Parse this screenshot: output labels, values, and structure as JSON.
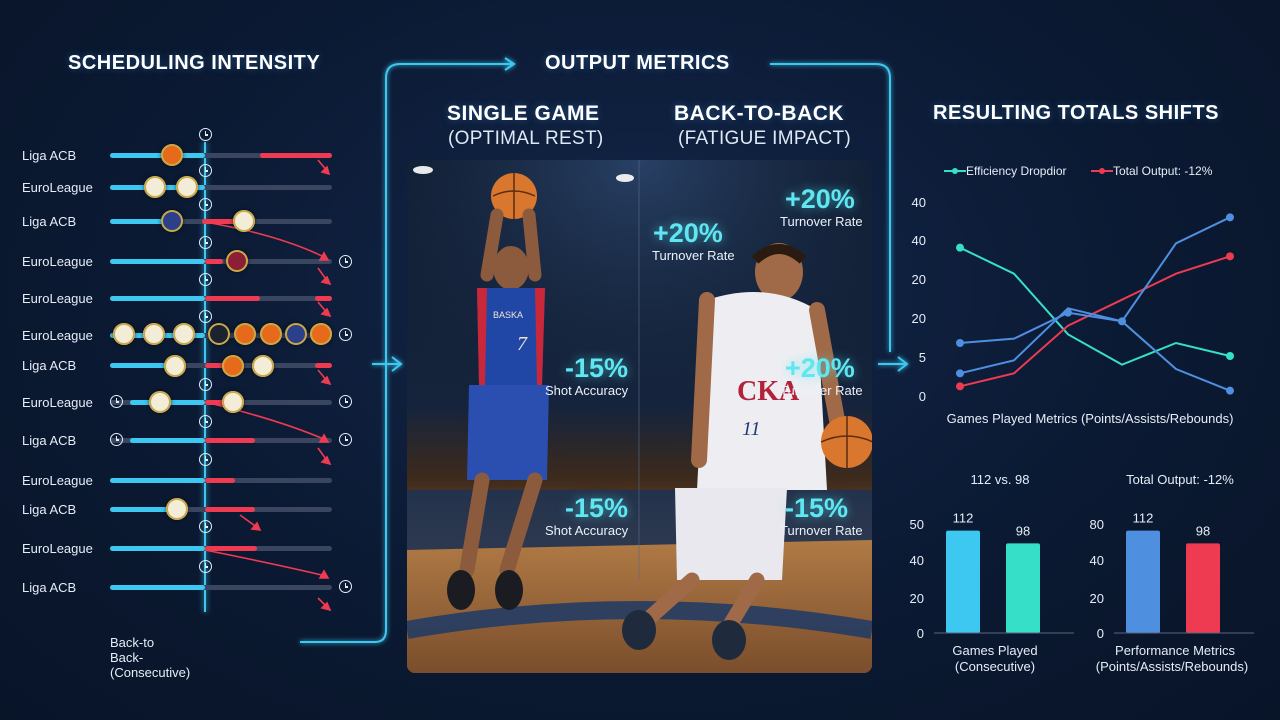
{
  "headings": {
    "scheduling": "SCHEDULING INTENSITY",
    "output": "OUTPUT METRICS",
    "resulting": "RESULTING TOTALS SHIFTS",
    "single_game": "SINGLE GAME",
    "single_game_sub": "(OPTIMAL REST)",
    "back_to_back": "BACK-TO-BACK",
    "back_to_back_sub": "(FATIGUE IMPACT)"
  },
  "lanes": [
    {
      "label": "Liga ACB"
    },
    {
      "label": "EuroLeague"
    },
    {
      "label": "Liga ACB"
    },
    {
      "label": "EuroLeague"
    },
    {
      "label": "EuroLeague"
    },
    {
      "label": "EuroLeague"
    },
    {
      "label": "Liga ACB"
    },
    {
      "label": "EuroLeague"
    },
    {
      "label": "Liga ACB"
    },
    {
      "label": "EuroLeague"
    },
    {
      "label": "Liga ACB"
    },
    {
      "label": "EuroLeague"
    },
    {
      "label": "Liga ACB"
    }
  ],
  "footer_label": "Back-to Back- (Consecutive)",
  "overlays": {
    "left_top_value": "-15%",
    "left_top_label": "Shot Accuracy",
    "left_bottom_value": "-15%",
    "left_bottom_label": "Shot Accuracy",
    "mid_value": "+20%",
    "mid_label": "Turnover Rate",
    "right_top_value": "+20%",
    "right_top_label": "Turnover Rate",
    "right_mid_value": "+20%",
    "right_mid_label": "Turnover Rate",
    "right_bottom_value": "-15%",
    "right_bottom_label": "Turnover Rate"
  },
  "jersey": {
    "left_text": "BASKA",
    "left_number": "7",
    "right_text": "CKA",
    "right_number": "11"
  },
  "colors": {
    "cyan": "#3cc8f0",
    "teal": "#36e0c8",
    "red": "#ee3b52",
    "blue": "#4f8fe0",
    "track": "#3a4660"
  },
  "chart_data": [
    {
      "type": "line",
      "legend": [
        "Efficiency Dropdior",
        "Total Output: -12%"
      ],
      "yticks": [
        "40",
        "40",
        "20",
        "20",
        "5",
        "0"
      ],
      "xlabel": "Games Played Metrics (Points/Assists/Rebounds)",
      "series": [
        {
          "name": "Efficiency Dropdior",
          "color": "#36e0c8",
          "values": [
            34,
            28,
            14,
            7,
            12,
            9
          ]
        },
        {
          "name": "Total Output: -12%",
          "color": "#ee3b52",
          "values": [
            2,
            5,
            16,
            22,
            28,
            32
          ]
        },
        {
          "name": "",
          "color": "#4f8fe0",
          "values": [
            12,
            13,
            19,
            17,
            35,
            41
          ]
        },
        {
          "name": "",
          "color": "#4f8fe0",
          "values": [
            5,
            8,
            20,
            17,
            6,
            1
          ]
        }
      ]
    },
    {
      "type": "bar",
      "title": "112 vs. 98",
      "yticks": [
        "50",
        "40",
        "20",
        "0"
      ],
      "values": [
        112,
        98
      ],
      "value_labels": [
        "112",
        "98"
      ],
      "colors": [
        "#3cc8f0",
        "#36e0c8"
      ],
      "xlabel_line1": "Games Played",
      "xlabel_line2": "(Consecutive)"
    },
    {
      "type": "bar",
      "title": "Total Output: -12%",
      "yticks": [
        "80",
        "40",
        "20",
        "0"
      ],
      "values": [
        112,
        98
      ],
      "value_labels": [
        "112",
        "98"
      ],
      "colors": [
        "#4f8fe0",
        "#ee3b52"
      ],
      "xlabel_line1": "Performance Metrics",
      "xlabel_line2": "(Points/Assists/Rebounds)"
    }
  ]
}
